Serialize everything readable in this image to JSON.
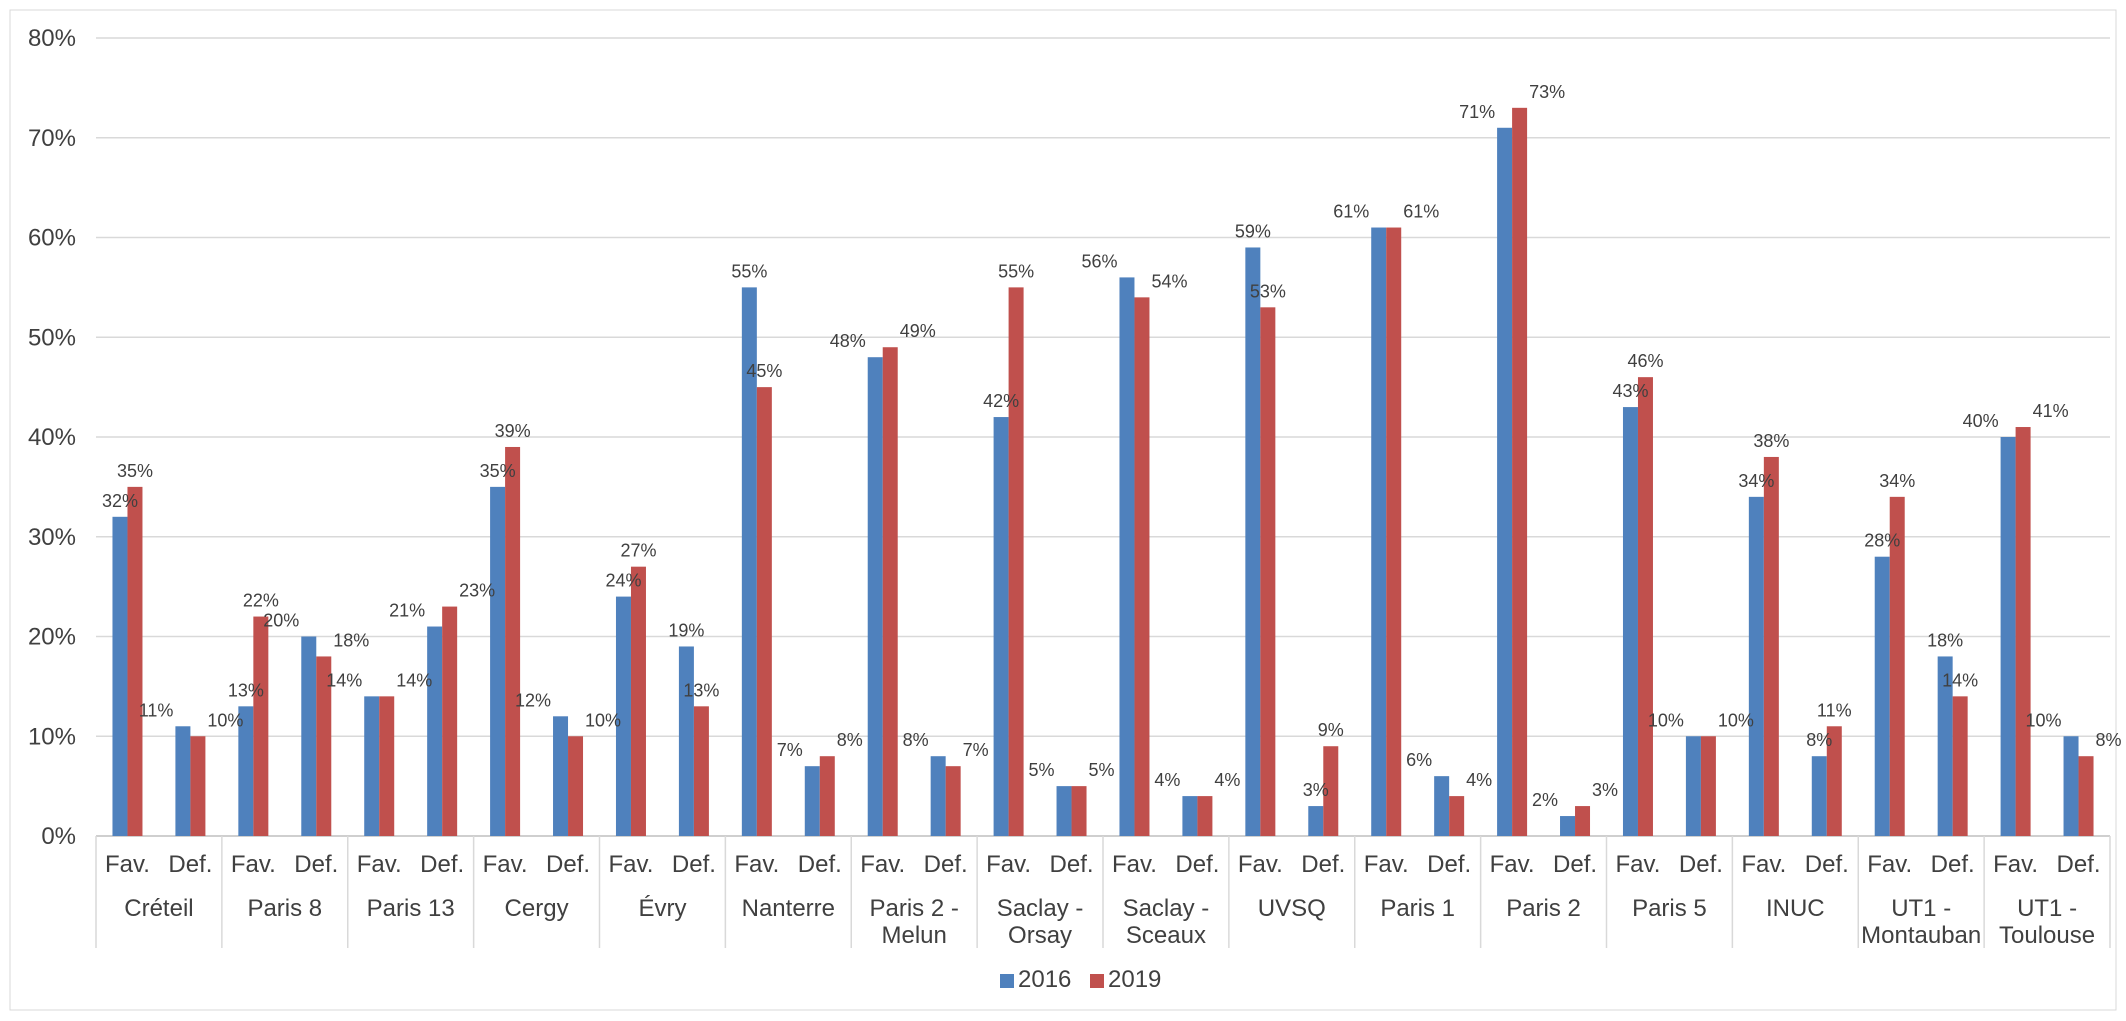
{
  "chart_data": {
    "type": "bar",
    "title": "",
    "xlabel": "",
    "ylabel": "",
    "ylim": [
      0,
      80
    ],
    "yticks": [
      "0%",
      "10%",
      "20%",
      "30%",
      "40%",
      "50%",
      "60%",
      "70%",
      "80%"
    ],
    "grid": true,
    "legend_position": "bottom",
    "groups": [
      "Créteil",
      "Paris 8",
      "Paris 13",
      "Cergy",
      "Évry",
      "Nanterre",
      "Paris 2 - Melun",
      "Saclay - Orsay",
      "Saclay - Sceaux",
      "UVSQ",
      "Paris 1",
      "Paris 2",
      "Paris 5",
      "INUC",
      "UT1 - Montauban",
      "UT1 - Toulouse"
    ],
    "group_lines": [
      [
        "Créteil"
      ],
      [
        "Paris 8"
      ],
      [
        "Paris 13"
      ],
      [
        "Cergy"
      ],
      [
        "Évry"
      ],
      [
        "Nanterre"
      ],
      [
        "Paris 2 -",
        "Melun"
      ],
      [
        "Saclay -",
        "Orsay"
      ],
      [
        "Saclay -",
        "Sceaux"
      ],
      [
        "UVSQ"
      ],
      [
        "Paris 1"
      ],
      [
        "Paris 2"
      ],
      [
        "Paris 5"
      ],
      [
        "INUC"
      ],
      [
        "UT1 -",
        "Montauban"
      ],
      [
        "UT1 -",
        "Toulouse"
      ]
    ],
    "subcategories": [
      "Fav.",
      "Def."
    ],
    "series": [
      {
        "name": "2016",
        "color": "#4f81bd",
        "values": [
          32,
          11,
          13,
          20,
          14,
          21,
          35,
          12,
          24,
          19,
          55,
          7,
          48,
          8,
          42,
          5,
          56,
          4,
          59,
          3,
          61,
          6,
          71,
          2,
          43,
          10,
          34,
          8,
          28,
          18,
          40,
          10
        ],
        "labels": [
          "32%",
          "11%",
          "13%",
          "20%",
          "14%",
          "21%",
          "35%",
          "12%",
          "24%",
          "19%",
          "55%",
          "7%",
          "48%",
          "8%",
          "42%",
          "5%",
          "56%",
          "4%",
          "59%",
          "3%",
          "61%",
          "6%",
          "71%",
          "2%",
          "43%",
          "10%",
          "34%",
          "8%",
          "28%",
          "18%",
          "40%",
          "10%"
        ]
      },
      {
        "name": "2019",
        "color": "#c0504d",
        "values": [
          35,
          10,
          22,
          18,
          14,
          23,
          39,
          10,
          27,
          13,
          45,
          8,
          49,
          7,
          55,
          5,
          54,
          4,
          53,
          9,
          61,
          4,
          73,
          3,
          46,
          10,
          38,
          11,
          34,
          14,
          41,
          8
        ],
        "labels": [
          "35%",
          "10%",
          "22%",
          "18%",
          "14%",
          "23%",
          "39%",
          "10%",
          "27%",
          "13%",
          "45%",
          "8%",
          "49%",
          "7%",
          "55%",
          "5%",
          "54%",
          "4%",
          "53%",
          "9%",
          "61%",
          "4%",
          "73%",
          "3%",
          "46%",
          "10%",
          "38%",
          "11%",
          "34%",
          "14%",
          "41%",
          "8%"
        ]
      }
    ]
  }
}
